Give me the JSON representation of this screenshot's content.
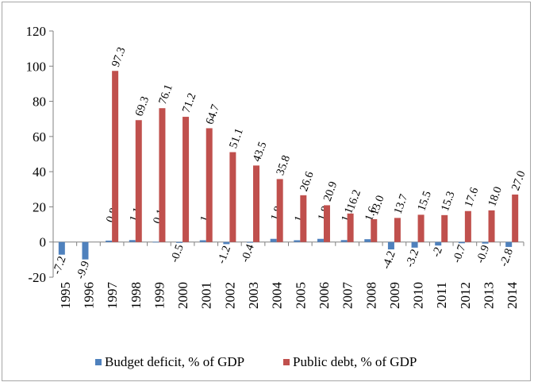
{
  "chart_data": {
    "type": "bar",
    "categories": [
      "1995",
      "1996",
      "1997",
      "1998",
      "1999",
      "2000",
      "2001",
      "2002",
      "2003",
      "2004",
      "2005",
      "2006",
      "2007",
      "2008",
      "2009",
      "2010",
      "2011",
      "2012",
      "2013",
      "2014"
    ],
    "series": [
      {
        "name": "Budget deficit, % of GDP",
        "color": "#4f81bd",
        "values": [
          -7.2,
          -9.9,
          0.8,
          1.1,
          0.1,
          -0.5,
          1,
          -1.2,
          -0.4,
          1.8,
          1,
          1.8,
          1.1,
          1.6,
          -4.2,
          -3.2,
          -2,
          -0.7,
          -0.9,
          -2.8
        ],
        "labels": [
          "-7.2",
          "-9.9",
          "0.8",
          "1.1",
          "0.1",
          "-0.5",
          "1",
          "-1.2",
          "-0.4",
          "1.8",
          "1",
          "1.8",
          "1.1",
          "1.6",
          "-4.2",
          "-3.2",
          "-2",
          "-0.7",
          "-0.9",
          "-2.8"
        ]
      },
      {
        "name": "Public debt, % of GDP",
        "color": "#c0504d",
        "values": [
          null,
          null,
          97.3,
          69.3,
          76.1,
          71.2,
          64.7,
          51.1,
          43.5,
          35.8,
          26.6,
          20.9,
          16.2,
          13.0,
          13.7,
          15.5,
          15.3,
          17.6,
          18.0,
          27.0
        ],
        "labels": [
          "",
          "",
          "97.3",
          "69.3",
          "76.1",
          "71.2",
          "64.7",
          "51.1",
          "43.5",
          "35.8",
          "26.6",
          "20.9",
          "16.2",
          "13.0",
          "13.7",
          "15.5",
          "15.3",
          "17.6",
          "18.0",
          "27.0"
        ]
      }
    ],
    "yticks": [
      "120",
      "100",
      "80",
      "60",
      "40",
      "20",
      "0",
      "-20"
    ],
    "ylim": [
      -20,
      120
    ],
    "title": "",
    "xlabel": "",
    "ylabel": "",
    "grid": false,
    "legend_position": "bottom"
  }
}
